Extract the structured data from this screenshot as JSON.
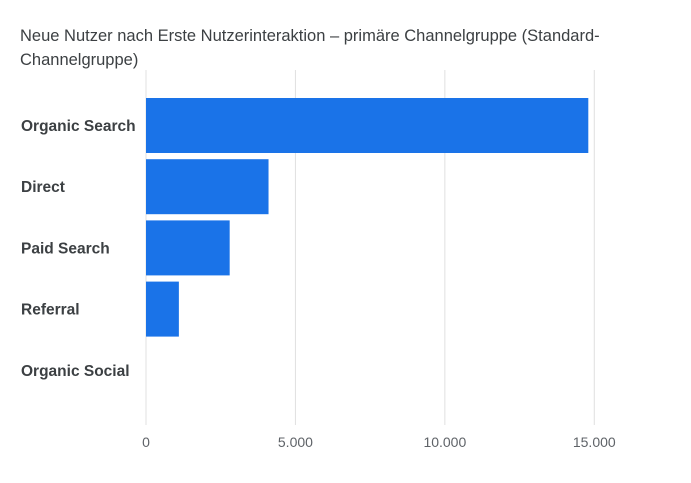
{
  "chart_data": {
    "type": "bar",
    "orientation": "horizontal",
    "title": "Neue Nutzer nach Erste Nutzerinteraktion – primäre Channelgruppe (Standard-Channelgruppe)",
    "categories": [
      "Organic Search",
      "Direct",
      "Paid Search",
      "Referral",
      "Organic Social"
    ],
    "values": [
      14800,
      4100,
      2800,
      1100,
      0
    ],
    "xlim": [
      0,
      17500
    ],
    "x_ticks": [
      0,
      5000,
      10000,
      15000
    ],
    "x_tick_labels": [
      "0",
      "5.000",
      "10.000",
      "15.000"
    ],
    "grid": true,
    "legend": "none",
    "colors": {
      "bar": "#1a73e8",
      "grid": "#e0e0e0",
      "text": "#3c4043"
    }
  }
}
